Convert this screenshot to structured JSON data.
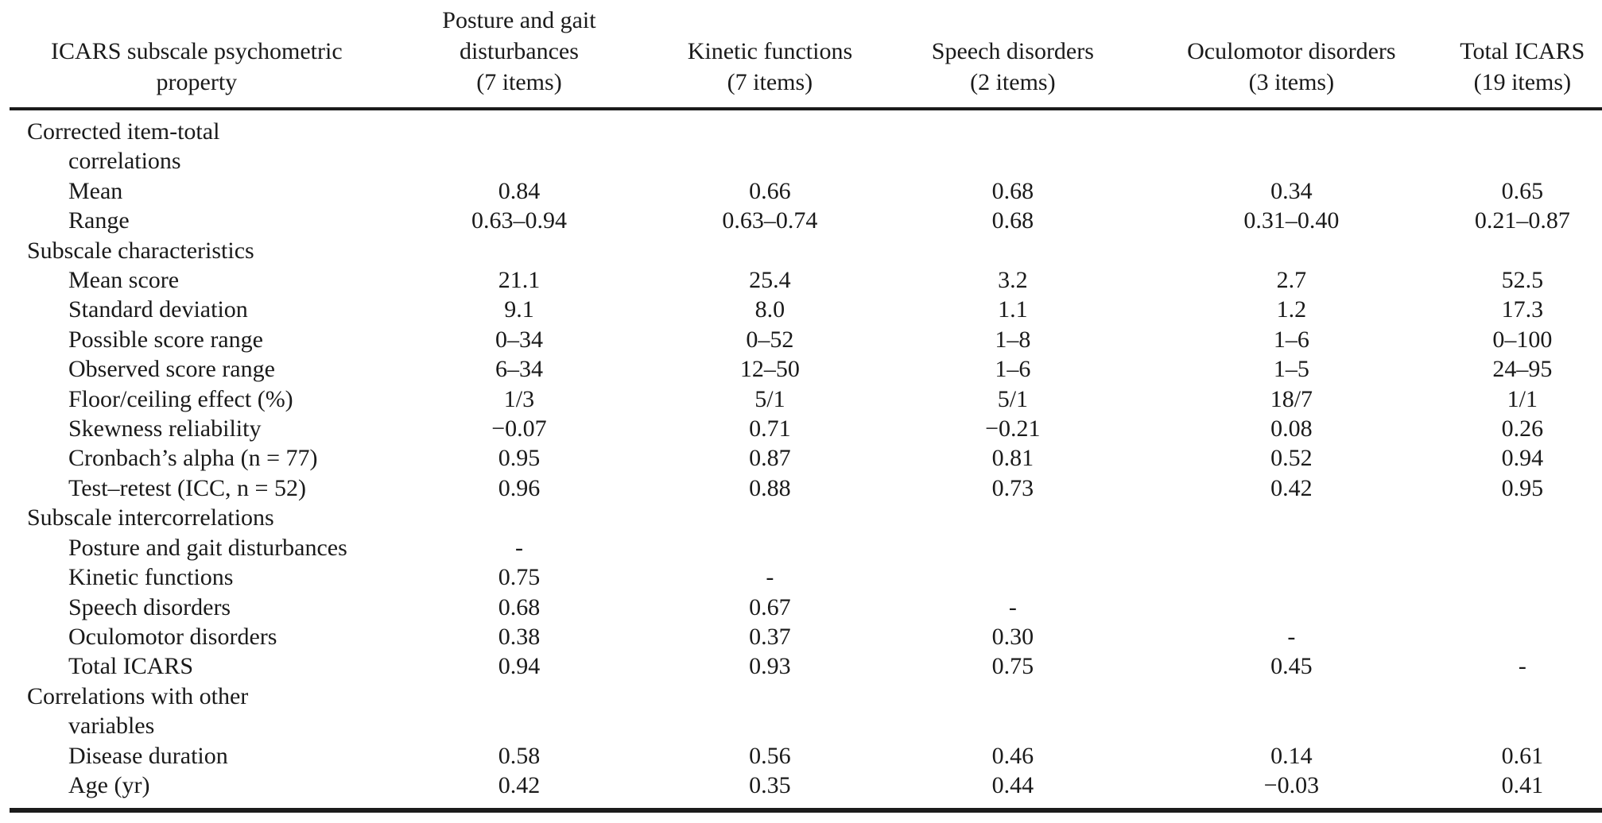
{
  "document": {
    "type": "journal-article-table",
    "colors": {
      "text": "#1a1a1a",
      "rule": "#1b1b1b",
      "background": "#ffffff"
    }
  },
  "table": {
    "columns": [
      {
        "lines": [
          "ICARS subscale psychometric",
          "property"
        ]
      },
      {
        "lines": [
          "Posture and gait",
          "disturbances",
          "(7 items)"
        ]
      },
      {
        "lines": [
          "Kinetic functions",
          "(7 items)"
        ]
      },
      {
        "lines": [
          "Speech disorders",
          "(2 items)"
        ]
      },
      {
        "lines": [
          "Oculomotor disorders",
          "(3 items)"
        ]
      },
      {
        "lines": [
          "Total ICARS",
          "(19 items)"
        ]
      }
    ],
    "rows": [
      {
        "label": "Corrected item-total",
        "indent": 0,
        "values": [
          "",
          "",
          "",
          "",
          ""
        ]
      },
      {
        "label": "correlations",
        "indent": 1,
        "values": [
          "",
          "",
          "",
          "",
          ""
        ]
      },
      {
        "label": "Mean",
        "indent": 1,
        "values": [
          "0.84",
          "0.66",
          "0.68",
          "0.34",
          "0.65"
        ]
      },
      {
        "label": "Range",
        "indent": 1,
        "values": [
          "0.63–0.94",
          "0.63–0.74",
          "0.68",
          "0.31–0.40",
          "0.21–0.87"
        ]
      },
      {
        "label": "Subscale characteristics",
        "indent": 0,
        "values": [
          "",
          "",
          "",
          "",
          ""
        ]
      },
      {
        "label": "Mean score",
        "indent": 1,
        "values": [
          "21.1",
          "25.4",
          "3.2",
          "2.7",
          "52.5"
        ]
      },
      {
        "label": "Standard deviation",
        "indent": 1,
        "values": [
          "9.1",
          "8.0",
          "1.1",
          "1.2",
          "17.3"
        ]
      },
      {
        "label": "Possible score range",
        "indent": 1,
        "values": [
          "0–34",
          "0–52",
          "1–8",
          "1–6",
          "0–100"
        ]
      },
      {
        "label": "Observed score range",
        "indent": 1,
        "values": [
          "6–34",
          "12–50",
          "1–6",
          "1–5",
          "24–95"
        ]
      },
      {
        "label": "Floor/ceiling effect (%)",
        "indent": 1,
        "values": [
          "1/3",
          "5/1",
          "5/1",
          "18/7",
          "1/1"
        ]
      },
      {
        "label": "Skewness reliability",
        "indent": 1,
        "values": [
          "−0.07",
          "0.71",
          "−0.21",
          "0.08",
          "0.26"
        ]
      },
      {
        "label": "Cronbach’s alpha (n = 77)",
        "indent": 1,
        "values": [
          "0.95",
          "0.87",
          "0.81",
          "0.52",
          "0.94"
        ]
      },
      {
        "label": "Test–retest (ICC, n = 52)",
        "indent": 1,
        "values": [
          "0.96",
          "0.88",
          "0.73",
          "0.42",
          "0.95"
        ]
      },
      {
        "label": "Subscale intercorrelations",
        "indent": 0,
        "values": [
          "",
          "",
          "",
          "",
          ""
        ]
      },
      {
        "label": "Posture and gait disturbances",
        "indent": 1,
        "values": [
          "-",
          "",
          "",
          "",
          ""
        ]
      },
      {
        "label": "Kinetic functions",
        "indent": 1,
        "values": [
          "0.75",
          "-",
          "",
          "",
          ""
        ]
      },
      {
        "label": "Speech disorders",
        "indent": 1,
        "values": [
          "0.68",
          "0.67",
          "-",
          "",
          ""
        ]
      },
      {
        "label": "Oculomotor disorders",
        "indent": 1,
        "values": [
          "0.38",
          "0.37",
          "0.30",
          "-",
          ""
        ]
      },
      {
        "label": "Total ICARS",
        "indent": 1,
        "values": [
          "0.94",
          "0.93",
          "0.75",
          "0.45",
          "-"
        ]
      },
      {
        "label": "Correlations with other",
        "indent": 0,
        "values": [
          "",
          "",
          "",
          "",
          ""
        ]
      },
      {
        "label": "variables",
        "indent": 1,
        "values": [
          "",
          "",
          "",
          "",
          ""
        ]
      },
      {
        "label": "Disease duration",
        "indent": 1,
        "values": [
          "0.58",
          "0.56",
          "0.46",
          "0.14",
          "0.61"
        ]
      },
      {
        "label": "Age (yr)",
        "indent": 1,
        "values": [
          "0.42",
          "0.35",
          "0.44",
          "−0.03",
          "0.41"
        ]
      }
    ]
  }
}
